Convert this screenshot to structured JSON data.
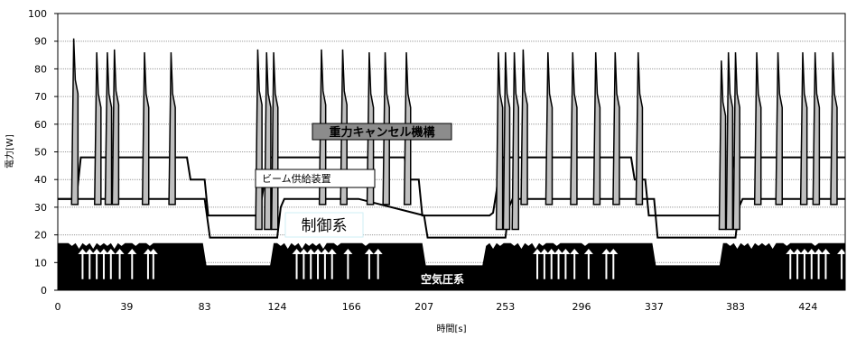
{
  "chart_data": {
    "type": "area",
    "ylabel": "電力[W]",
    "xlabel": "時間[s]",
    "ylim": [
      0,
      100
    ],
    "yticks": [
      "0",
      "10",
      "20",
      "30",
      "40",
      "50",
      "60",
      "70",
      "80",
      "90",
      "100"
    ],
    "xticks": [
      {
        "value": 0,
        "label": "0"
      },
      {
        "value": 39,
        "label": "39"
      },
      {
        "value": 83,
        "label": "83"
      },
      {
        "value": 124,
        "label": "124"
      },
      {
        "value": 166,
        "label": "166"
      },
      {
        "value": 207,
        "label": "207"
      },
      {
        "value": 253,
        "label": "253"
      },
      {
        "value": 296,
        "label": "296"
      },
      {
        "value": 337,
        "label": "337"
      },
      {
        "value": 383,
        "label": "383"
      },
      {
        "value": 424,
        "label": "424"
      }
    ],
    "xlim": [
      0,
      445
    ],
    "grid": true,
    "annotations": {
      "gravity": "重力キャンセル機構",
      "beam": "ビーム供給装置",
      "control": "制御系",
      "air": "空気圧系"
    },
    "series": [
      {
        "kind": "base",
        "fill": "#000000",
        "x": [
          0,
          6,
          8,
          10,
          12,
          14,
          16,
          18,
          20,
          22,
          24,
          26,
          28,
          30,
          32,
          34,
          36,
          38,
          40,
          42,
          44,
          46,
          48,
          50,
          52,
          54,
          56,
          58,
          60,
          62,
          64,
          66,
          68,
          70,
          72,
          74,
          76,
          78,
          80,
          82,
          84,
          120,
          122,
          124,
          126,
          128,
          130,
          132,
          134,
          136,
          138,
          140,
          142,
          144,
          146,
          148,
          150,
          152,
          154,
          156,
          158,
          160,
          162,
          164,
          166,
          168,
          170,
          172,
          174,
          176,
          178,
          180,
          182,
          184,
          186,
          188,
          190,
          192,
          194,
          196,
          198,
          200,
          202,
          204,
          206,
          208,
          240,
          242,
          244,
          246,
          248,
          250,
          252,
          254,
          256,
          258,
          260,
          262,
          264,
          266,
          268,
          270,
          272,
          274,
          276,
          278,
          280,
          282,
          284,
          286,
          288,
          290,
          292,
          294,
          296,
          298,
          300,
          302,
          304,
          306,
          308,
          310,
          312,
          314,
          316,
          318,
          320,
          322,
          324,
          326,
          328,
          330,
          332,
          334,
          336,
          338,
          374,
          376,
          378,
          380,
          382,
          384,
          386,
          388,
          390,
          392,
          394,
          396,
          398,
          400,
          402,
          404,
          406,
          408,
          410,
          412,
          414,
          416,
          418,
          420,
          422,
          424,
          426,
          428,
          430,
          432,
          434,
          436,
          438,
          440,
          442,
          444,
          445
        ],
        "values": [
          17,
          17,
          16,
          17,
          15,
          17,
          16,
          17,
          15,
          17,
          16,
          17,
          16,
          17,
          15,
          17,
          16,
          17,
          17,
          17,
          16,
          17,
          17,
          17,
          16,
          17,
          17,
          17,
          17,
          17,
          17,
          17,
          17,
          17,
          17,
          17,
          17,
          17,
          17,
          17,
          9,
          9,
          17,
          17,
          16,
          17,
          15,
          17,
          16,
          17,
          15,
          17,
          16,
          17,
          16,
          17,
          15,
          17,
          17,
          17,
          16,
          17,
          17,
          17,
          17,
          17,
          17,
          17,
          16,
          17,
          17,
          17,
          17,
          17,
          17,
          17,
          17,
          17,
          17,
          17,
          17,
          17,
          17,
          17,
          17,
          9,
          9,
          16,
          17,
          15,
          17,
          16,
          17,
          17,
          17,
          16,
          17,
          15,
          17,
          16,
          17,
          15,
          17,
          16,
          17,
          17,
          17,
          16,
          17,
          17,
          17,
          17,
          17,
          17,
          17,
          16,
          17,
          17,
          17,
          17,
          17,
          17,
          17,
          17,
          17,
          17,
          17,
          17,
          17,
          17,
          17,
          17,
          17,
          17,
          17,
          9,
          9,
          17,
          17,
          16,
          17,
          15,
          17,
          16,
          17,
          15,
          17,
          16,
          17,
          16,
          17,
          15,
          17,
          17,
          17,
          16,
          17,
          17,
          17,
          17,
          17,
          17,
          17,
          16,
          17,
          17,
          17,
          17,
          17,
          17,
          17,
          17,
          17
        ]
      },
      {
        "kind": "air_arrows",
        "x": [
          14,
          18,
          22,
          26,
          30,
          35,
          42,
          51,
          54,
          135,
          139,
          143,
          147,
          151,
          155,
          164,
          176,
          181,
          271,
          275,
          279,
          283,
          287,
          292,
          300,
          310,
          314,
          414,
          418,
          422,
          426,
          430,
          434,
          443
        ]
      },
      {
        "kind": "control_line",
        "x": [
          0,
          83,
          86,
          124,
          126,
          128,
          170,
          207,
          209,
          253,
          255,
          257,
          337,
          339,
          383,
          385,
          387,
          445
        ],
        "values": [
          33,
          33,
          19,
          19,
          30,
          33,
          33,
          27,
          19,
          19,
          30,
          33,
          33,
          19,
          19,
          30,
          33,
          33
        ]
      },
      {
        "kind": "beam_line",
        "x": [
          0,
          3,
          5,
          7,
          9,
          11,
          13,
          15,
          17,
          19,
          21,
          23,
          25,
          27,
          29,
          31,
          33,
          35,
          37,
          39,
          41,
          43,
          45,
          47,
          49,
          51,
          53,
          55,
          57,
          59,
          61,
          63,
          65,
          67,
          69,
          71,
          73,
          75,
          77,
          79,
          81,
          83,
          85,
          108,
          110,
          112,
          114,
          116,
          118,
          120,
          122,
          124,
          126,
          128,
          130,
          132,
          134,
          136,
          138,
          140,
          142,
          144,
          146,
          148,
          150,
          152,
          154,
          156,
          158,
          160,
          162,
          164,
          166,
          168,
          170,
          172,
          174,
          176,
          178,
          180,
          182,
          184,
          186,
          188,
          190,
          192,
          194,
          196,
          198,
          200,
          202,
          204,
          206,
          208,
          210,
          240,
          242,
          244,
          246,
          248,
          250,
          252,
          254,
          256,
          258,
          260,
          262,
          264,
          266,
          268,
          270,
          272,
          274,
          276,
          278,
          280,
          282,
          284,
          286,
          288,
          290,
          292,
          294,
          296,
          298,
          300,
          302,
          304,
          306,
          308,
          310,
          312,
          314,
          316,
          318,
          320,
          322,
          324,
          326,
          328,
          330,
          332,
          334,
          336,
          338,
          340,
          374,
          376,
          378,
          380,
          382,
          384,
          386,
          388,
          390,
          392,
          394,
          396,
          398,
          400,
          402,
          404,
          406,
          408,
          410,
          412,
          414,
          416,
          418,
          420,
          422,
          424,
          426,
          428,
          430,
          432,
          434,
          436,
          438,
          440,
          442,
          444,
          445
        ],
        "values": [
          33,
          33,
          33,
          33,
          33,
          36,
          48,
          48,
          48,
          48,
          48,
          48,
          48,
          48,
          48,
          48,
          48,
          48,
          48,
          48,
          48,
          48,
          48,
          48,
          48,
          48,
          48,
          48,
          48,
          48,
          48,
          48,
          48,
          48,
          48,
          48,
          48,
          40,
          40,
          40,
          40,
          40,
          27,
          27,
          27,
          27,
          28,
          36,
          48,
          48,
          48,
          48,
          48,
          48,
          48,
          48,
          48,
          48,
          48,
          48,
          48,
          48,
          48,
          48,
          48,
          48,
          48,
          48,
          48,
          48,
          48,
          48,
          48,
          48,
          48,
          48,
          48,
          48,
          48,
          48,
          48,
          48,
          48,
          48,
          48,
          48,
          48,
          48,
          40,
          40,
          40,
          40,
          27,
          27,
          27,
          27,
          27,
          27,
          28,
          36,
          48,
          48,
          48,
          48,
          48,
          48,
          48,
          48,
          48,
          48,
          48,
          48,
          48,
          48,
          48,
          48,
          48,
          48,
          48,
          48,
          48,
          48,
          48,
          48,
          48,
          48,
          48,
          48,
          48,
          48,
          48,
          48,
          48,
          48,
          48,
          48,
          48,
          48,
          40,
          40,
          40,
          40,
          27,
          27,
          27,
          27,
          27,
          27,
          28,
          36,
          48,
          48,
          48,
          48,
          48,
          48,
          48,
          48,
          48,
          48,
          48,
          48,
          48,
          48,
          48,
          48,
          48,
          48,
          48,
          48,
          48,
          48,
          48,
          48,
          48,
          48,
          48,
          48,
          48,
          48,
          48,
          48,
          48
        ]
      },
      {
        "kind": "gravity_spikes",
        "fill": "#bfbfbf",
        "spikes": [
          {
            "x": 9,
            "peak": 91,
            "base": 31
          },
          {
            "x": 22,
            "peak": 86,
            "base": 31
          },
          {
            "x": 28,
            "peak": 86,
            "base": 31
          },
          {
            "x": 32,
            "peak": 87,
            "base": 31
          },
          {
            "x": 49,
            "peak": 86,
            "base": 31
          },
          {
            "x": 64,
            "peak": 86,
            "base": 31
          },
          {
            "x": 113,
            "peak": 87,
            "base": 22
          },
          {
            "x": 118,
            "peak": 86,
            "base": 22
          },
          {
            "x": 122,
            "peak": 86,
            "base": 22
          },
          {
            "x": 149,
            "peak": 87,
            "base": 31
          },
          {
            "x": 161,
            "peak": 87,
            "base": 31
          },
          {
            "x": 176,
            "peak": 86,
            "base": 31
          },
          {
            "x": 185,
            "peak": 86,
            "base": 31
          },
          {
            "x": 197,
            "peak": 86,
            "base": 31
          },
          {
            "x": 249,
            "peak": 86,
            "base": 22
          },
          {
            "x": 253,
            "peak": 86,
            "base": 22
          },
          {
            "x": 258,
            "peak": 86,
            "base": 22
          },
          {
            "x": 263,
            "peak": 87,
            "base": 31
          },
          {
            "x": 277,
            "peak": 86,
            "base": 31
          },
          {
            "x": 291,
            "peak": 86,
            "base": 31
          },
          {
            "x": 304,
            "peak": 86,
            "base": 31
          },
          {
            "x": 315,
            "peak": 86,
            "base": 31
          },
          {
            "x": 328,
            "peak": 86,
            "base": 31
          },
          {
            "x": 375,
            "peak": 83,
            "base": 22
          },
          {
            "x": 379,
            "peak": 86,
            "base": 22
          },
          {
            "x": 383,
            "peak": 86,
            "base": 22
          },
          {
            "x": 395,
            "peak": 86,
            "base": 31
          },
          {
            "x": 407,
            "peak": 86,
            "base": 31
          },
          {
            "x": 421,
            "peak": 86,
            "base": 31
          },
          {
            "x": 428,
            "peak": 86,
            "base": 31
          },
          {
            "x": 438,
            "peak": 86,
            "base": 31
          }
        ]
      }
    ]
  }
}
